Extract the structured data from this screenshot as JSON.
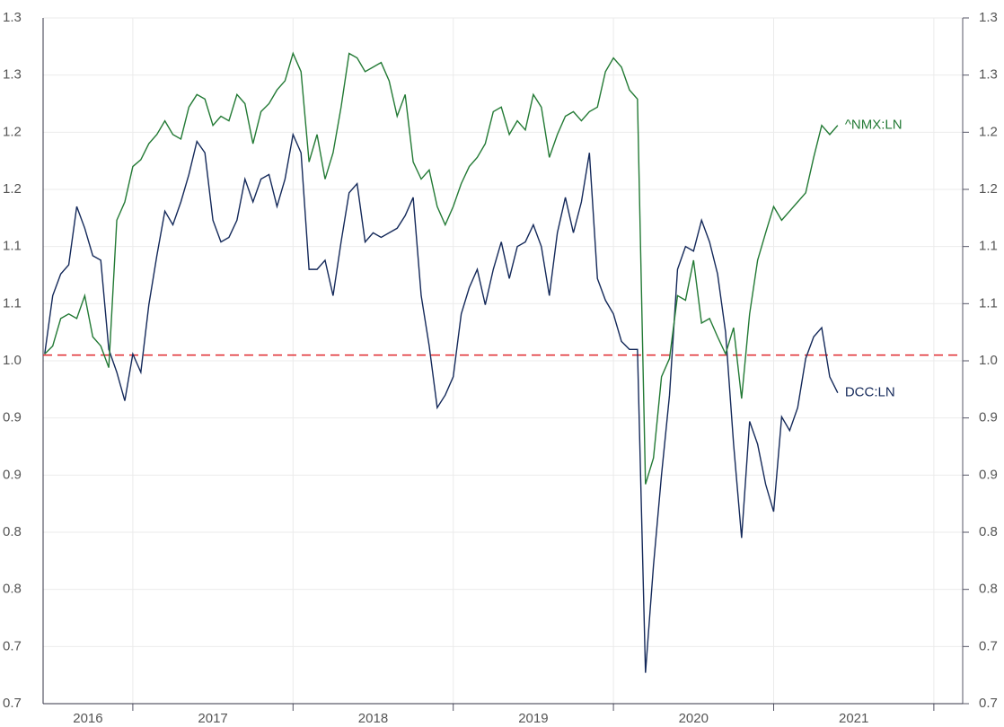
{
  "chart_data": {
    "type": "line",
    "x": [
      2016.45,
      2016.5,
      2016.55,
      2016.6,
      2016.65,
      2016.7,
      2016.75,
      2016.8,
      2016.85,
      2016.9,
      2016.95,
      2017.0,
      2017.05,
      2017.1,
      2017.15,
      2017.2,
      2017.25,
      2017.3,
      2017.35,
      2017.4,
      2017.45,
      2017.5,
      2017.55,
      2017.6,
      2017.65,
      2017.7,
      2017.75,
      2017.8,
      2017.85,
      2017.9,
      2017.95,
      2018.0,
      2018.05,
      2018.1,
      2018.15,
      2018.2,
      2018.25,
      2018.3,
      2018.35,
      2018.4,
      2018.45,
      2018.5,
      2018.55,
      2018.6,
      2018.65,
      2018.7,
      2018.75,
      2018.8,
      2018.85,
      2018.9,
      2018.95,
      2019.0,
      2019.05,
      2019.1,
      2019.15,
      2019.2,
      2019.25,
      2019.3,
      2019.35,
      2019.4,
      2019.45,
      2019.5,
      2019.55,
      2019.6,
      2019.65,
      2019.7,
      2019.75,
      2019.8,
      2019.85,
      2019.9,
      2019.95,
      2020.0,
      2020.05,
      2020.1,
      2020.15,
      2020.2,
      2020.25,
      2020.3,
      2020.35,
      2020.4,
      2020.45,
      2020.5,
      2020.55,
      2020.6,
      2020.65,
      2020.7,
      2020.75,
      2020.8,
      2020.85,
      2020.9,
      2020.95,
      2021.0,
      2021.05,
      2021.1,
      2021.15,
      2021.2,
      2021.25,
      2021.3,
      2021.35,
      2021.4
    ],
    "series": [
      {
        "name": "DCC:LN",
        "color": "#14295a",
        "values": [
          1.006,
          1.057,
          1.076,
          1.084,
          1.135,
          1.116,
          1.092,
          1.088,
          1.01,
          0.99,
          0.965,
          1.006,
          0.99,
          1.049,
          1.092,
          1.131,
          1.119,
          1.139,
          1.163,
          1.192,
          1.182,
          1.123,
          1.104,
          1.108,
          1.123,
          1.159,
          1.139,
          1.159,
          1.163,
          1.135,
          1.159,
          1.198,
          1.182,
          1.08,
          1.08,
          1.088,
          1.057,
          1.104,
          1.147,
          1.155,
          1.104,
          1.112,
          1.108,
          1.112,
          1.116,
          1.127,
          1.143,
          1.057,
          1.013,
          0.959,
          0.97,
          0.986,
          1.041,
          1.064,
          1.08,
          1.049,
          1.08,
          1.104,
          1.072,
          1.1,
          1.104,
          1.119,
          1.1,
          1.057,
          1.112,
          1.143,
          1.112,
          1.139,
          1.182,
          1.072,
          1.053,
          1.041,
          1.017,
          1.01,
          1.01,
          0.727,
          0.821,
          0.9,
          0.97,
          1.08,
          1.1,
          1.096,
          1.123,
          1.104,
          1.076,
          1.025,
          0.927,
          0.845,
          0.947,
          0.927,
          0.892,
          0.868,
          0.951,
          0.939,
          0.959,
          1.002,
          1.021,
          1.029,
          0.986,
          0.972
        ]
      },
      {
        "name": "^NMX:LN",
        "color": "#237a35",
        "values": [
          1.006,
          1.013,
          1.037,
          1.041,
          1.037,
          1.057,
          1.021,
          1.013,
          0.994,
          1.123,
          1.139,
          1.17,
          1.176,
          1.19,
          1.198,
          1.21,
          1.198,
          1.194,
          1.222,
          1.233,
          1.229,
          1.206,
          1.214,
          1.21,
          1.233,
          1.225,
          1.19,
          1.218,
          1.225,
          1.237,
          1.245,
          1.269,
          1.253,
          1.174,
          1.198,
          1.159,
          1.182,
          1.222,
          1.269,
          1.265,
          1.253,
          1.257,
          1.261,
          1.245,
          1.214,
          1.233,
          1.174,
          1.159,
          1.167,
          1.135,
          1.119,
          1.135,
          1.155,
          1.17,
          1.178,
          1.19,
          1.218,
          1.222,
          1.198,
          1.21,
          1.202,
          1.233,
          1.222,
          1.178,
          1.198,
          1.214,
          1.218,
          1.21,
          1.218,
          1.222,
          1.253,
          1.265,
          1.257,
          1.237,
          1.229,
          0.892,
          0.915,
          0.986,
          1.002,
          1.057,
          1.053,
          1.088,
          1.033,
          1.037,
          1.021,
          1.006,
          1.029,
          0.967,
          1.041,
          1.088,
          1.112,
          1.135,
          1.123,
          1.131,
          1.139,
          1.147,
          1.178,
          1.206,
          1.198,
          1.206
        ]
      }
    ],
    "hline": 1.005,
    "hline_color": "#e0282e",
    "xlim": [
      2016.44,
      2022.18
    ],
    "xticks": [
      2017,
      2018,
      2019,
      2020,
      2021,
      2022
    ],
    "xlabels": [
      2016,
      2017,
      2018,
      2019,
      2020,
      2021
    ],
    "ylim": [
      0.7,
      1.3
    ],
    "yticks": [
      {
        "value": 0.7,
        "label": "0.7"
      },
      {
        "value": 0.75,
        "label": "0.7"
      },
      {
        "value": 0.8,
        "label": "0.8"
      },
      {
        "value": 0.85,
        "label": "0.8"
      },
      {
        "value": 0.9,
        "label": "0.9"
      },
      {
        "value": 0.95,
        "label": "0.9"
      },
      {
        "value": 1.0,
        "label": "1.0"
      },
      {
        "value": 1.05,
        "label": "1.1"
      },
      {
        "value": 1.1,
        "label": "1.1"
      },
      {
        "value": 1.15,
        "label": "1.2"
      },
      {
        "value": 1.2,
        "label": "1.2"
      },
      {
        "value": 1.25,
        "label": "1.3"
      },
      {
        "value": 1.3,
        "label": "1.3"
      }
    ],
    "y2lim": [
      0.7,
      1.3
    ],
    "y2ticks": [
      {
        "value": 0.7,
        "label": "0.7"
      },
      {
        "value": 0.75,
        "label": "0.7"
      },
      {
        "value": 0.8,
        "label": "0.8"
      },
      {
        "value": 0.85,
        "label": "0.8"
      },
      {
        "value": 0.9,
        "label": "0.9"
      },
      {
        "value": 0.95,
        "label": "0.9"
      },
      {
        "value": 1.0,
        "label": "1.0"
      },
      {
        "value": 1.05,
        "label": "1.1"
      },
      {
        "value": 1.1,
        "label": "1.1"
      },
      {
        "value": 1.15,
        "label": "1.2"
      },
      {
        "value": 1.2,
        "label": "1.2"
      },
      {
        "value": 1.25,
        "label": "1.3"
      },
      {
        "value": 1.3,
        "label": "1.3"
      }
    ],
    "grid": true
  }
}
